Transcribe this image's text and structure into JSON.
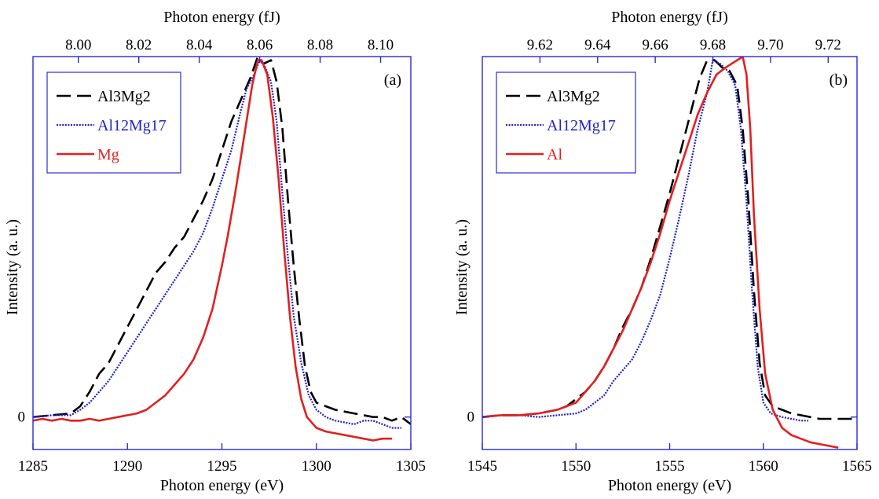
{
  "chart_data": [
    {
      "type": "line",
      "panel_label": "(a)",
      "xlabel": "Photon energy (eV)",
      "ylabel": "Intensity (a. u.)",
      "top_xlabel": "Photon energy (fJ)",
      "xlim": [
        1285,
        1305
      ],
      "ylim": [
        -0.09,
        1.0
      ],
      "x_ticks": [
        1285,
        1290,
        1295,
        1300,
        1305
      ],
      "top_xlim": [
        7.985,
        8.11
      ],
      "top_x_ticks": [
        "8.00",
        "8.02",
        "8.04",
        "8.06",
        "8.08",
        "8.10"
      ],
      "y_ticks": [
        {
          "value": 0,
          "label": "0"
        }
      ],
      "grid": false,
      "legend_position": "top-left",
      "series": [
        {
          "name": "Al3Mg2",
          "color": "#000000",
          "dash": "long-dash",
          "x": [
            1285,
            1286,
            1287,
            1287.5,
            1288,
            1288.5,
            1289,
            1289.5,
            1290,
            1290.5,
            1291,
            1291.5,
            1292,
            1292.5,
            1293,
            1293.5,
            1294,
            1294.5,
            1295,
            1295.5,
            1296,
            1296.5,
            1296.9,
            1297.2,
            1297.6,
            1297.9,
            1298.2,
            1298.5,
            1298.8,
            1299.1,
            1299.4,
            1299.7,
            1300,
            1300.5,
            1301,
            1301.5,
            1302,
            1302.5,
            1303,
            1303.5,
            1304,
            1304.5,
            1305
          ],
          "y": [
            0,
            0.005,
            0.01,
            0.03,
            0.07,
            0.12,
            0.15,
            0.2,
            0.25,
            0.3,
            0.35,
            0.4,
            0.43,
            0.47,
            0.5,
            0.55,
            0.6,
            0.66,
            0.74,
            0.82,
            0.88,
            0.94,
            1.0,
            0.98,
            0.99,
            0.93,
            0.8,
            0.6,
            0.42,
            0.27,
            0.14,
            0.07,
            0.04,
            0.03,
            0.02,
            0.015,
            0.01,
            0.005,
            0.0,
            0.0,
            -0.01,
            0.0,
            -0.02
          ]
        },
        {
          "name": "Al12Mg17",
          "color": "#2020c8",
          "dash": "dotted",
          "x": [
            1285,
            1286,
            1287,
            1287.5,
            1288,
            1288.5,
            1289,
            1289.5,
            1290,
            1290.5,
            1291,
            1291.5,
            1292,
            1292.5,
            1293,
            1293.5,
            1294,
            1294.5,
            1295,
            1295.5,
            1296,
            1296.3,
            1296.7,
            1297,
            1297.3,
            1297.6,
            1297.9,
            1298.2,
            1298.5,
            1298.8,
            1299.2,
            1299.6,
            1300,
            1300.5,
            1301,
            1301.5,
            1302,
            1302.5,
            1303,
            1303.5,
            1304,
            1304.5
          ],
          "y": [
            0,
            0.005,
            0.005,
            0.02,
            0.04,
            0.07,
            0.1,
            0.14,
            0.18,
            0.22,
            0.26,
            0.3,
            0.34,
            0.38,
            0.42,
            0.46,
            0.51,
            0.58,
            0.66,
            0.74,
            0.85,
            0.91,
            0.95,
            0.99,
            0.97,
            0.93,
            0.82,
            0.62,
            0.44,
            0.28,
            0.15,
            0.06,
            0.02,
            0.0,
            -0.01,
            -0.015,
            -0.02,
            -0.01,
            -0.01,
            -0.02,
            -0.03,
            -0.03
          ]
        },
        {
          "name": "Mg",
          "color": "#e02020",
          "dash": "solid",
          "x": [
            1285,
            1285.5,
            1286,
            1286.5,
            1287,
            1287.5,
            1288,
            1288.5,
            1289,
            1289.5,
            1290,
            1290.5,
            1291,
            1291.5,
            1292,
            1292.5,
            1293,
            1293.5,
            1294,
            1294.5,
            1295,
            1295.3,
            1295.7,
            1296,
            1296.3,
            1296.6,
            1296.9,
            1297.1,
            1297.4,
            1297.7,
            1298,
            1298.3,
            1298.6,
            1298.9,
            1299.2,
            1299.5,
            1300,
            1300.5,
            1301,
            1301.5,
            1302,
            1302.5,
            1303,
            1303.5,
            1304
          ],
          "y": [
            -0.01,
            -0.005,
            -0.01,
            -0.005,
            -0.01,
            -0.01,
            -0.005,
            -0.01,
            -0.005,
            0.0,
            0.005,
            0.01,
            0.02,
            0.04,
            0.06,
            0.09,
            0.12,
            0.16,
            0.22,
            0.3,
            0.42,
            0.5,
            0.62,
            0.72,
            0.82,
            0.92,
            0.99,
            0.99,
            0.95,
            0.83,
            0.66,
            0.46,
            0.28,
            0.14,
            0.05,
            0.0,
            -0.03,
            -0.04,
            -0.045,
            -0.05,
            -0.055,
            -0.06,
            -0.065,
            -0.06,
            -0.06
          ]
        }
      ]
    },
    {
      "type": "line",
      "panel_label": "(b)",
      "xlabel": "Photon energy (eV)",
      "ylabel": "Intensity (a. u.)",
      "top_xlabel": "Photon energy (fJ)",
      "xlim": [
        1545,
        1565
      ],
      "ylim": [
        -0.09,
        1.0
      ],
      "x_ticks": [
        1545,
        1550,
        1555,
        1560,
        1565
      ],
      "top_xlim": [
        9.6,
        9.73
      ],
      "top_x_ticks": [
        "9.62",
        "9.64",
        "9.66",
        "9.68",
        "9.70",
        "9.72"
      ],
      "y_ticks": [
        {
          "value": 0,
          "label": "0"
        }
      ],
      "grid": false,
      "legend_position": "top-left",
      "series": [
        {
          "name": "Al3Mg2",
          "color": "#000000",
          "dash": "long-dash",
          "x": [
            1545,
            1546,
            1547,
            1548,
            1549,
            1549.5,
            1550,
            1550.5,
            1551,
            1551.5,
            1552,
            1552.5,
            1553,
            1553.5,
            1554,
            1554.5,
            1555,
            1555.5,
            1556,
            1556.3,
            1556.6,
            1557,
            1557.4,
            1557.8,
            1558.2,
            1558.6,
            1558.9,
            1559.2,
            1559.5,
            1559.8,
            1560.1,
            1560.5,
            1561,
            1561.5,
            1562,
            1562.5,
            1563,
            1563.5,
            1564,
            1564.5,
            1565
          ],
          "y": [
            0,
            0.005,
            0.005,
            0.01,
            0.02,
            0.03,
            0.05,
            0.07,
            0.1,
            0.14,
            0.19,
            0.25,
            0.3,
            0.36,
            0.44,
            0.53,
            0.62,
            0.72,
            0.82,
            0.88,
            0.94,
            0.99,
            0.99,
            0.97,
            0.96,
            0.92,
            0.8,
            0.6,
            0.35,
            0.15,
            0.06,
            0.03,
            0.02,
            0.01,
            0.005,
            0.0,
            -0.005,
            -0.005,
            -0.005,
            -0.005,
            -0.005
          ]
        },
        {
          "name": "Al12Mg17",
          "color": "#2020c8",
          "dash": "dotted",
          "x": [
            1545,
            1546,
            1547,
            1548,
            1549,
            1550,
            1550.5,
            1551,
            1551.5,
            1552,
            1552.5,
            1553,
            1553.5,
            1554,
            1554.5,
            1555,
            1555.5,
            1556,
            1556.5,
            1557,
            1557.3,
            1557.7,
            1558.1,
            1558.5,
            1558.8,
            1559.1,
            1559.4,
            1559.7,
            1560,
            1560.4,
            1561,
            1561.5,
            1562,
            1562.4
          ],
          "y": [
            0,
            0.005,
            0.005,
            0.0,
            0.005,
            0.01,
            0.02,
            0.04,
            0.06,
            0.1,
            0.13,
            0.16,
            0.21,
            0.27,
            0.34,
            0.44,
            0.55,
            0.67,
            0.8,
            0.9,
            0.99,
            0.98,
            0.96,
            0.92,
            0.8,
            0.6,
            0.35,
            0.14,
            0.04,
            0.01,
            0.0,
            -0.005,
            -0.01,
            -0.01
          ]
        },
        {
          "name": "Al",
          "color": "#e02020",
          "dash": "solid",
          "x": [
            1545,
            1546,
            1547,
            1548,
            1549,
            1550,
            1550.5,
            1551,
            1551.5,
            1552,
            1552.5,
            1553,
            1553.5,
            1554,
            1554.5,
            1555,
            1555.5,
            1556,
            1556.5,
            1557,
            1557.5,
            1558,
            1558.3,
            1558.6,
            1558.9,
            1559.1,
            1559.3,
            1559.5,
            1559.8,
            1560.1,
            1560.5,
            1561,
            1561.5,
            1562,
            1562.5,
            1563,
            1563.5,
            1564
          ],
          "y": [
            0,
            0.005,
            0.005,
            0.01,
            0.02,
            0.04,
            0.07,
            0.1,
            0.14,
            0.19,
            0.24,
            0.3,
            0.36,
            0.43,
            0.51,
            0.6,
            0.68,
            0.76,
            0.84,
            0.9,
            0.95,
            0.97,
            0.98,
            0.99,
            1.0,
            0.95,
            0.8,
            0.56,
            0.3,
            0.12,
            0.02,
            -0.03,
            -0.05,
            -0.06,
            -0.07,
            -0.075,
            -0.08,
            -0.085
          ]
        }
      ]
    }
  ]
}
